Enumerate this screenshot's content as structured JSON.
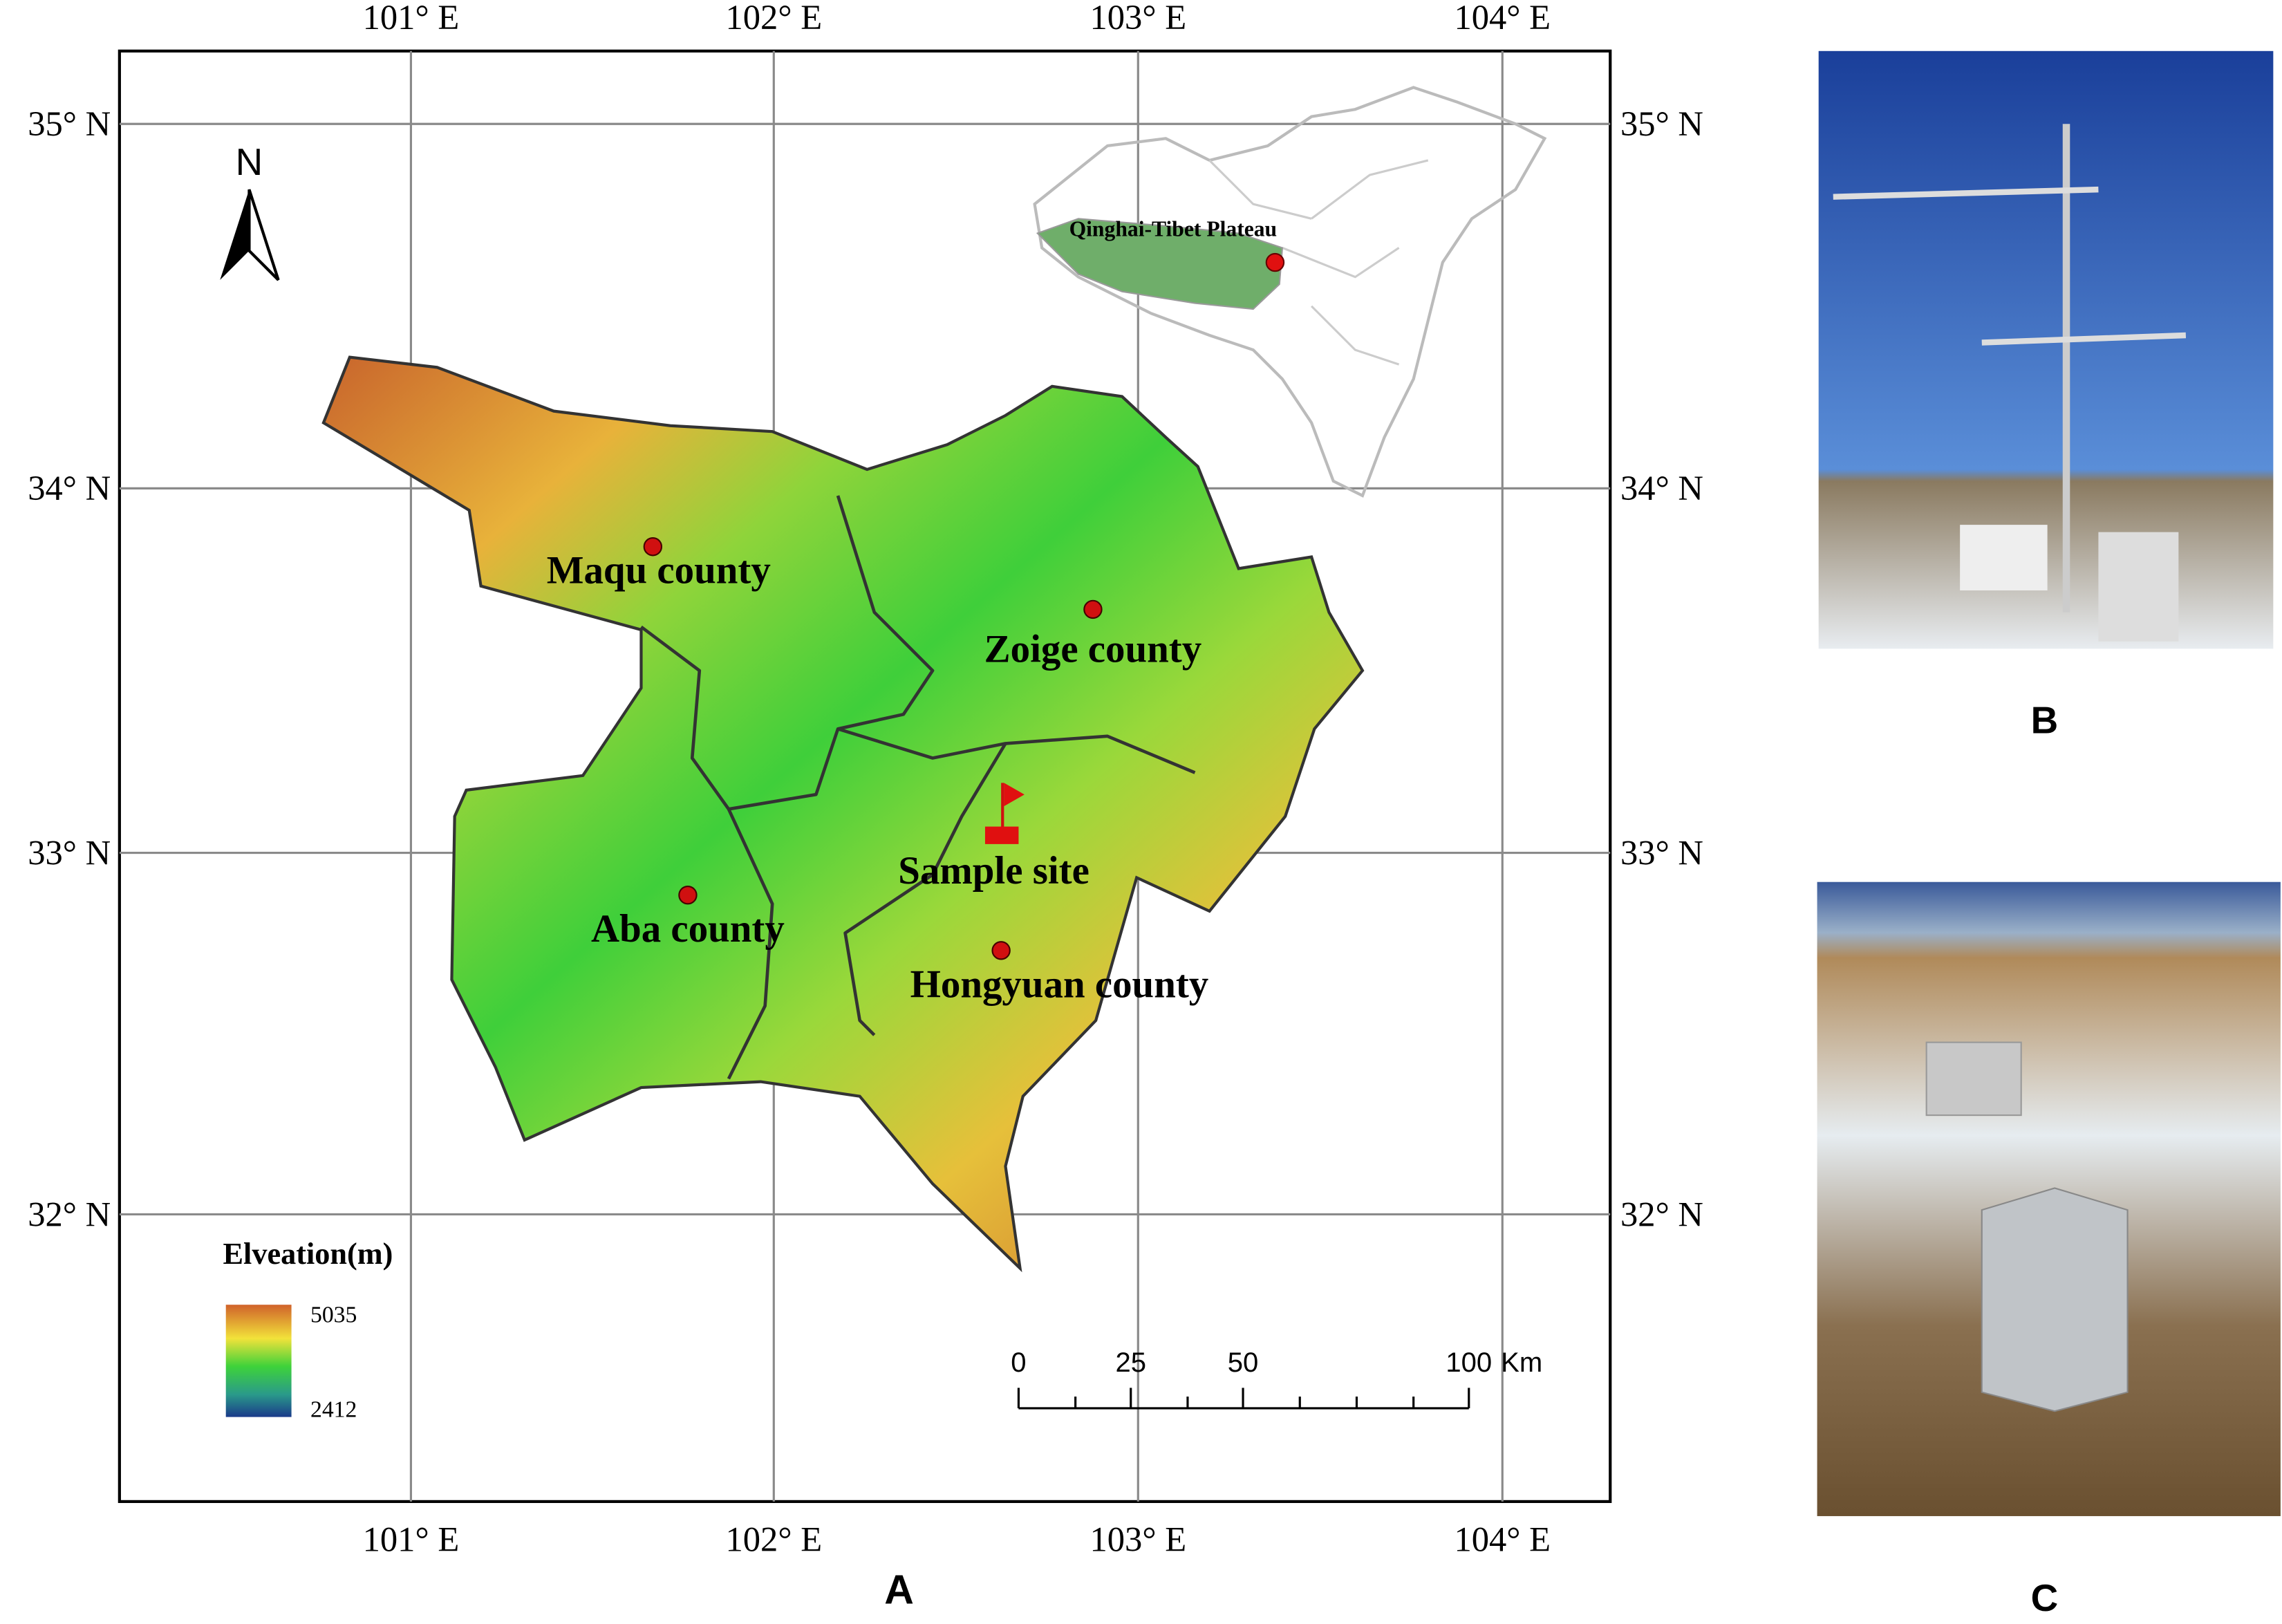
{
  "panels": {
    "a": "A",
    "b": "B",
    "c": "C"
  },
  "map": {
    "lon_labels": [
      "101° E",
      "102° E",
      "103° E",
      "104° E"
    ],
    "lat_labels": [
      "35° N",
      "34° N",
      "33° N",
      "32° N"
    ],
    "north": "N",
    "inset_label": "Qinghai-Tibet Plateau",
    "places": [
      {
        "label": "Maqu county"
      },
      {
        "label": "Zoige county"
      },
      {
        "label": "Aba county"
      },
      {
        "label": "Hongyuan county"
      }
    ],
    "sample_site": "Sample site",
    "legend": {
      "title": "Elveation(m)",
      "max": "5035",
      "min": "2412"
    },
    "scale_bar": {
      "ticks": [
        "0",
        "25",
        "50",
        "100"
      ],
      "unit": "Km"
    }
  }
}
